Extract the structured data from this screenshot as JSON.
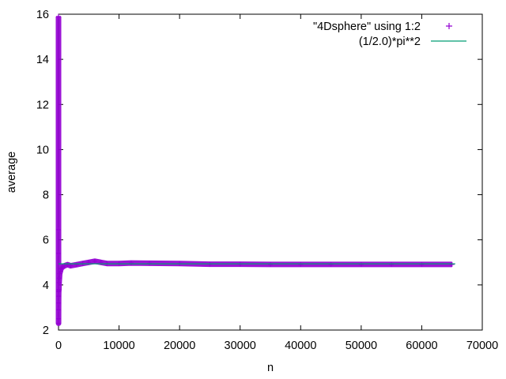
{
  "chart_data": {
    "type": "scatter",
    "xlabel": "n",
    "ylabel": "average",
    "xlim": [
      0,
      70000
    ],
    "ylim": [
      2,
      16
    ],
    "x_ticks": [
      "0",
      "10000",
      "20000",
      "30000",
      "40000",
      "50000",
      "60000",
      "70000"
    ],
    "y_ticks": [
      "2",
      "4",
      "6",
      "8",
      "10",
      "12",
      "14",
      "16"
    ],
    "grid": false,
    "legend_position": "top-right",
    "series": [
      {
        "name": "\"4Dsphere\" using 1:2",
        "marker": "+",
        "color": "#9400d3",
        "points": [
          [
            1,
            15.9
          ],
          [
            2,
            6.45
          ],
          [
            3,
            5.4
          ],
          [
            5,
            2.3
          ],
          [
            8,
            2.5
          ],
          [
            12,
            2.9
          ],
          [
            18,
            3.2
          ],
          [
            25,
            3.5
          ],
          [
            35,
            3.7
          ],
          [
            50,
            3.75
          ],
          [
            70,
            3.8
          ],
          [
            100,
            4.1
          ],
          [
            150,
            4.3
          ],
          [
            200,
            4.5
          ],
          [
            300,
            4.6
          ],
          [
            400,
            4.7
          ],
          [
            500,
            4.75
          ],
          [
            700,
            4.8
          ],
          [
            1000,
            4.85
          ],
          [
            1500,
            4.9
          ],
          [
            2000,
            4.85
          ],
          [
            3000,
            4.9
          ],
          [
            4000,
            4.95
          ],
          [
            5000,
            5.0
          ],
          [
            6000,
            5.05
          ],
          [
            7000,
            5.0
          ],
          [
            8000,
            4.95
          ],
          [
            10000,
            4.95
          ],
          [
            12000,
            4.97
          ],
          [
            15000,
            4.96
          ],
          [
            20000,
            4.95
          ],
          [
            25000,
            4.92
          ],
          [
            30000,
            4.92
          ],
          [
            35000,
            4.91
          ],
          [
            40000,
            4.91
          ],
          [
            45000,
            4.91
          ],
          [
            50000,
            4.91
          ],
          [
            55000,
            4.91
          ],
          [
            60000,
            4.91
          ],
          [
            65000,
            4.91
          ]
        ]
      },
      {
        "name": "(1/2.0)*pi**2",
        "marker": "line",
        "color": "#009e73",
        "function_value": 4.9348,
        "x_range": [
          0,
          65536
        ]
      }
    ]
  }
}
